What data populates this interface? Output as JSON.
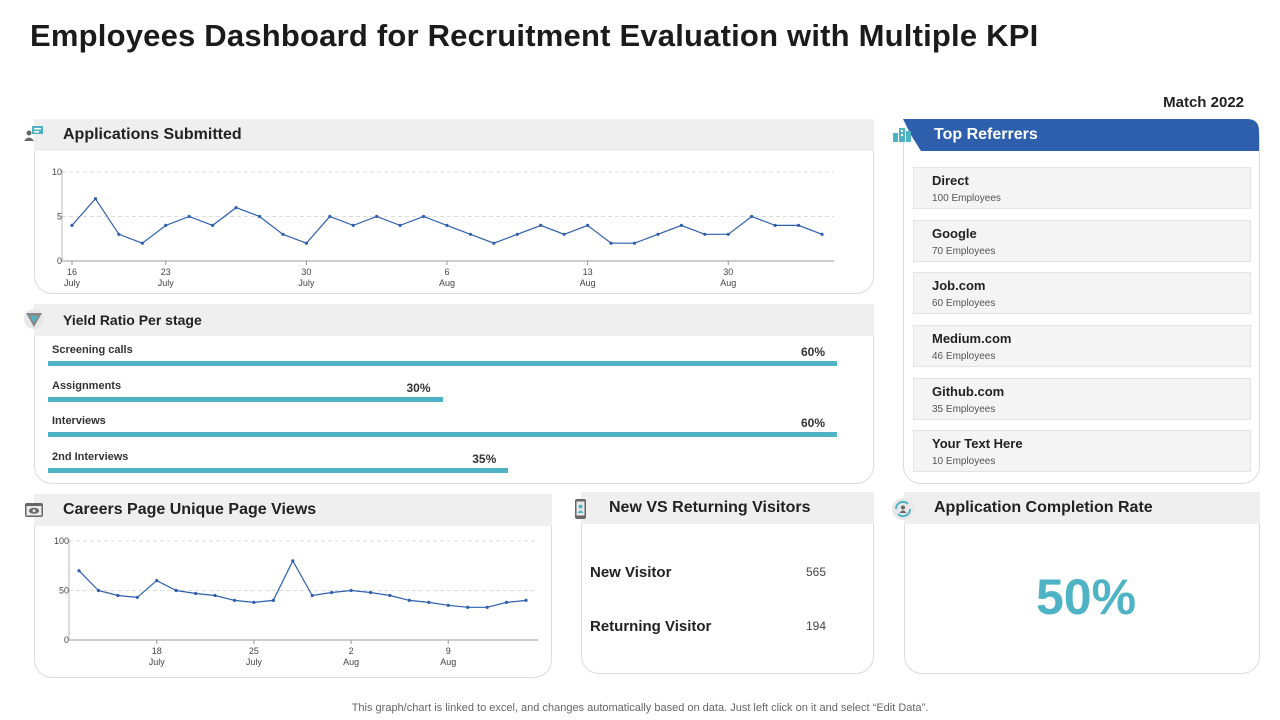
{
  "title": "Employees Dashboard for Recruitment Evaluation with Multiple KPI",
  "date": "Match 2022",
  "applications": {
    "title": "Applications Submitted",
    "icon": "people-chart-icon"
  },
  "yield": {
    "title": "Yield Ratio Per stage",
    "icon": "funnel-icon",
    "stages": [
      {
        "label": "Screening calls",
        "pct_label": "60%",
        "value": 60
      },
      {
        "label": "Assignments",
        "pct_label": "30%",
        "value": 30
      },
      {
        "label": "Interviews",
        "pct_label": "60%",
        "value": 60
      },
      {
        "label": "2nd Interviews",
        "pct_label": "35%",
        "value": 35
      }
    ]
  },
  "careers": {
    "title": "Careers Page Unique Page Views",
    "icon": "browser-eye-icon"
  },
  "visitors": {
    "title": "New VS Returning Visitors",
    "icon": "phone-user-icon",
    "new_label": "New Visitor",
    "new_value": "565",
    "returning_label": "Returning Visitor",
    "returning_value": "194"
  },
  "completion": {
    "title": "Application Completion Rate",
    "icon": "refresh-user-icon",
    "value": "50%"
  },
  "referrers": {
    "title": "Top Referrers",
    "icon": "buildings-icon",
    "accent": "#2e5fad",
    "items": [
      {
        "name": "Direct",
        "count": "100 Employees"
      },
      {
        "name": "Google",
        "count": "70 Employees"
      },
      {
        "name": "Job.com",
        "count": "60 Employees"
      },
      {
        "name": "Medium.com",
        "count": "46 Employees"
      },
      {
        "name": "Github.com",
        "count": "35 Employees"
      },
      {
        "name": "Your Text Here",
        "count": "10 Employees"
      }
    ]
  },
  "footer": "This graph/chart is linked to excel,  and changes automatically based on data. Just left click on it and select “Edit Data”.",
  "chart_data": [
    {
      "type": "line",
      "title": "Applications Submitted",
      "ylim": [
        0,
        10
      ],
      "yticks": [
        "0",
        "5",
        "10"
      ],
      "xticks": [
        {
          "index": 0,
          "day": "16",
          "month": "July"
        },
        {
          "index": 4,
          "day": "23",
          "month": "July"
        },
        {
          "index": 10,
          "day": "30",
          "month": "July"
        },
        {
          "index": 16,
          "day": "6",
          "month": "Aug"
        },
        {
          "index": 22,
          "day": "13",
          "month": "Aug"
        },
        {
          "index": 28,
          "day": "30",
          "month": "Aug"
        }
      ],
      "values": [
        4,
        7,
        3,
        2,
        4,
        5,
        4,
        6,
        5,
        3,
        2,
        5,
        4,
        5,
        4,
        5,
        4,
        3,
        2,
        3,
        4,
        3,
        4,
        2,
        2,
        3,
        4,
        3,
        3,
        5,
        4,
        4,
        3
      ],
      "line_color": "#2e5fad"
    },
    {
      "type": "line",
      "title": "Careers Page Unique Page Views",
      "ylim": [
        0,
        100
      ],
      "yticks": [
        "0",
        "50",
        "100"
      ],
      "xticks": [
        {
          "index": 4,
          "day": "18",
          "month": "July"
        },
        {
          "index": 9,
          "day": "25",
          "month": "July"
        },
        {
          "index": 14,
          "day": "2",
          "month": "Aug"
        },
        {
          "index": 19,
          "day": "9",
          "month": "Aug"
        }
      ],
      "values": [
        70,
        50,
        45,
        43,
        60,
        50,
        47,
        45,
        40,
        38,
        40,
        80,
        45,
        48,
        50,
        48,
        45,
        40,
        38,
        35,
        33,
        33,
        38,
        40
      ],
      "line_color": "#2e5fad"
    }
  ]
}
